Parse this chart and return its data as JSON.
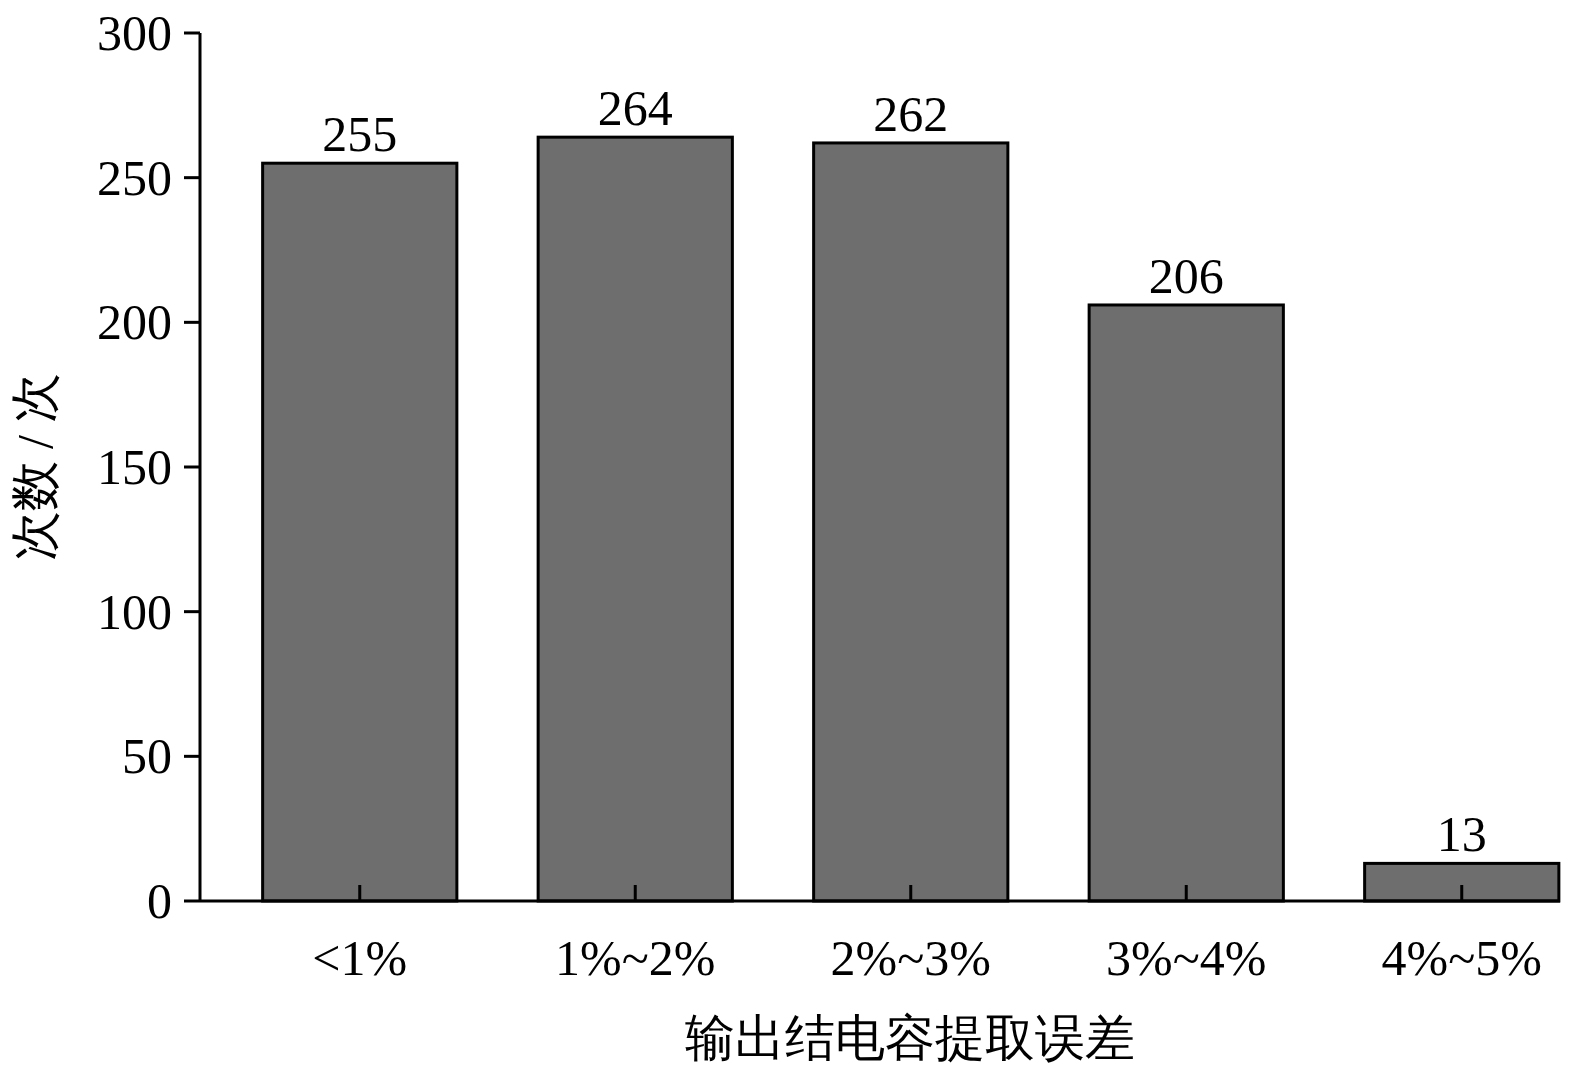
{
  "chart_data": {
    "type": "bar",
    "xlabel": "输出结电容提取误差",
    "ylabel": "次数 / 次",
    "categories": [
      "<1%",
      "1%~2%",
      "2%~3%",
      "3%~4%",
      "4%~5%"
    ],
    "values": [
      255,
      264,
      262,
      206,
      13
    ],
    "color": "#6e6e6e",
    "ylim": [
      0,
      300
    ],
    "yticks": [
      0,
      50,
      100,
      150,
      200,
      250,
      300
    ],
    "data_labels": true
  }
}
